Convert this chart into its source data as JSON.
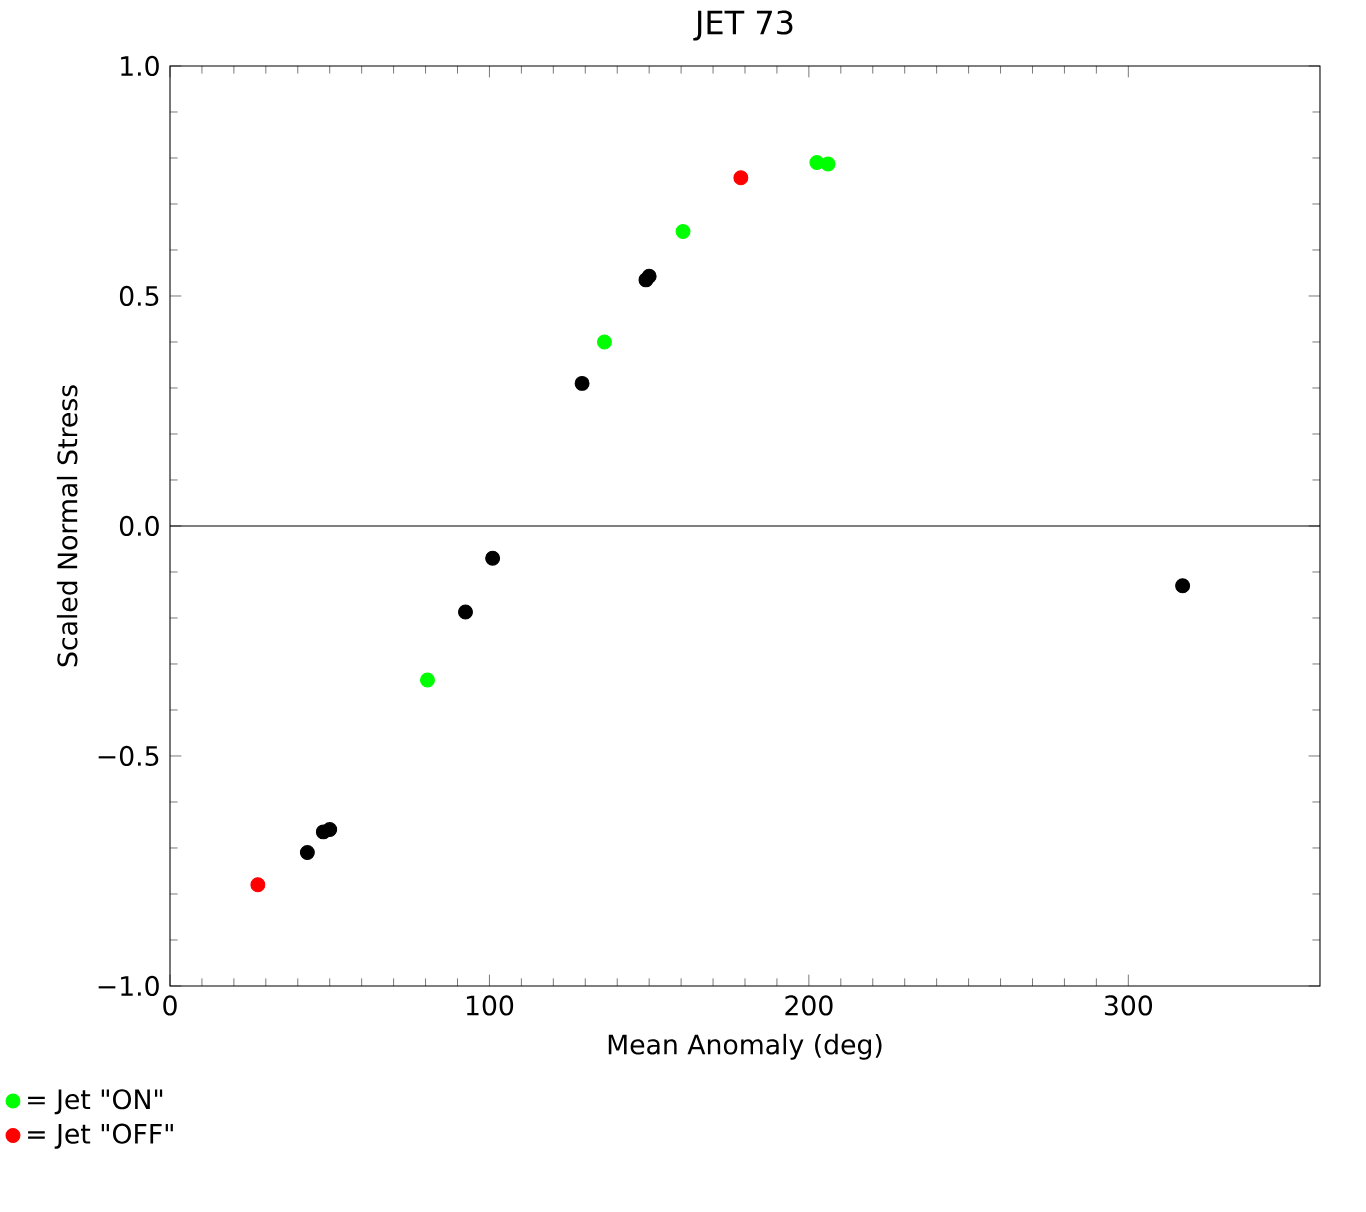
{
  "chart_data": {
    "type": "scatter",
    "title": "JET 73",
    "xlabel": "Mean Anomaly (deg)",
    "ylabel": "Scaled Normal Stress",
    "xlim": [
      0,
      360
    ],
    "xticks": [
      0,
      100,
      200,
      300
    ],
    "ylim": [
      -1.0,
      1.0
    ],
    "yticks": [
      {
        "value": -1.0,
        "label": "−1.0"
      },
      {
        "value": -0.5,
        "label": "−0.5"
      },
      {
        "value": 0.0,
        "label": "0.0"
      },
      {
        "value": 0.5,
        "label": "0.5"
      },
      {
        "value": 1.0,
        "label": "1.0"
      }
    ],
    "series": [
      {
        "name": "= Jet \"ON\"",
        "color": "#00ff00",
        "x": [
          80.6,
          136,
          160.6,
          202.5,
          206
        ],
        "values": [
          -0.335,
          0.4,
          0.64,
          0.79,
          0.787
        ]
      },
      {
        "name": "= Jet \"OFF\"",
        "color": "#ff0000",
        "x": [
          27.5,
          178.7
        ],
        "values": [
          -0.78,
          0.757
        ]
      },
      {
        "color": "#000000",
        "x": [
          43,
          48,
          50,
          92.5,
          101,
          129,
          149,
          150,
          317
        ],
        "values": [
          -0.71,
          -0.665,
          -0.66,
          -0.187,
          -0.07,
          0.31,
          0.535,
          0.543,
          -0.13
        ]
      }
    ],
    "ref_lines": [
      {
        "axis": "y",
        "value": 0,
        "color": "#000000"
      }
    ],
    "marker": "circle",
    "legend": "bottom left",
    "grid": false
  }
}
